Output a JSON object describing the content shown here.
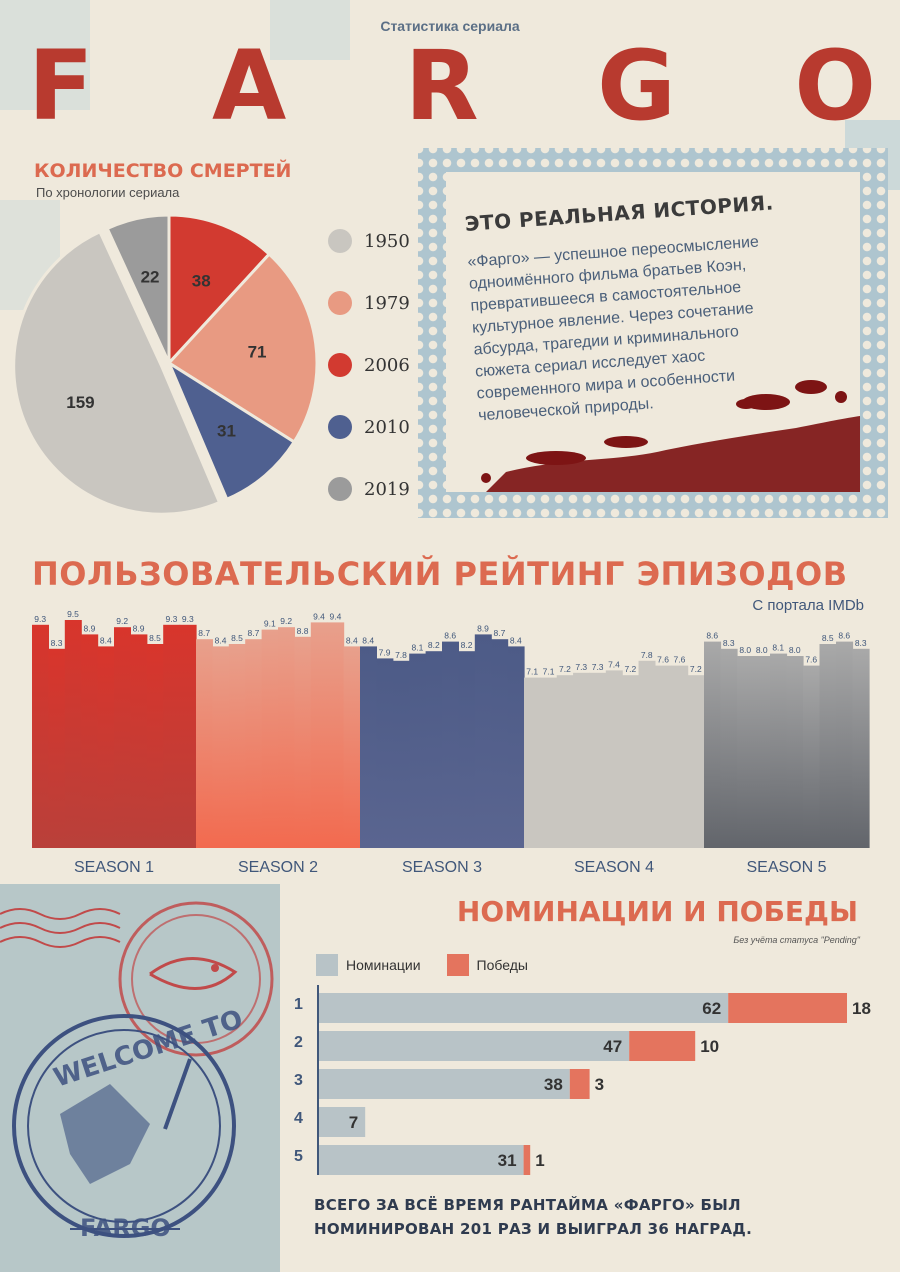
{
  "header": {
    "subtitle": "Статистика сериала",
    "title_letters": [
      "F",
      "A",
      "R",
      "G",
      "O"
    ]
  },
  "deaths": {
    "title": "КОЛИЧЕСТВО СМЕРТЕЙ",
    "subtitle": "По хронологии сериала"
  },
  "story": {
    "heading": "ЭТО РЕАЛЬНАЯ ИСТОРИЯ.",
    "lines": [
      "«Фарго» — успешное переосмысление",
      "одноимённого фильма братьев Коэн,",
      "превратившееся в самостоятельное",
      "культурное явление. Через сочетание",
      "абсурда, трагедии и криминального",
      "сюжета сериал исследует хаос",
      "современного мира и особенности",
      "человеческой природы."
    ]
  },
  "ratings": {
    "title": "ПОЛЬЗОВАТЕЛЬСКИЙ РЕЙТИНГ ЭПИЗОДОВ",
    "source": "С портала IMDb"
  },
  "nominations": {
    "title": "НОМИНАЦИИ И ПОБЕДЫ",
    "note": "Без учёта статуса \"Pending\"",
    "legend_nominations": "Номинации",
    "legend_wins": "Победы"
  },
  "footer": {
    "line1": "ВСЕГО ЗА ВСЁ ВРЕМЯ РАНТАЙМА «ФАРГО» БЫЛ",
    "line2": "НОМИНИРОВАН  201  РАЗ И ВЫИГРАЛ 36 НАГРАД."
  },
  "stamp": {
    "text_top": "WELCOME TO",
    "text_bottom": "FARGO"
  },
  "colors": {
    "red": "#d23a30",
    "salmon": "#e89a82",
    "navy": "#4f6090",
    "light_grey": "#c9c6c0",
    "dark_grey": "#9b9b9b",
    "accent": "#dc6a50"
  },
  "chart_data": [
    {
      "type": "pie",
      "title": "КОЛИЧЕСТВО СМЕРТЕЙ",
      "subtitle": "По хронологии сериала",
      "categories": [
        "1950",
        "1979",
        "2006",
        "2010",
        "2019"
      ],
      "slices": [
        {
          "label": "2006",
          "value": 38,
          "color": "#d23a30"
        },
        {
          "label": "1979",
          "value": 71,
          "color": "#e89a82"
        },
        {
          "label": "2010",
          "value": 31,
          "color": "#4f6090"
        },
        {
          "label": "1950",
          "value": 159,
          "color": "#c9c6c0"
        },
        {
          "label": "2019",
          "value": 22,
          "color": "#9b9b9b"
        }
      ],
      "legend_position": "right"
    },
    {
      "type": "bar",
      "title": "ПОЛЬЗОВАТЕЛЬСКИЙ РЕЙТИНГ ЭПИЗОДОВ",
      "subtitle": "С портала IMDb",
      "ylim": [
        0,
        9.5
      ],
      "seasons": [
        {
          "name": "SEASON 1",
          "color_top": "#d8352c",
          "color_bottom": "#b9403a",
          "values": [
            9.3,
            8.3,
            9.5,
            8.9,
            8.4,
            9.2,
            8.9,
            8.5,
            9.3,
            9.3
          ]
        },
        {
          "name": "SEASON 2",
          "color_top": "#e8a08c",
          "color_bottom": "#f26a4f",
          "values": [
            8.7,
            8.4,
            8.5,
            8.7,
            9.1,
            9.2,
            8.8,
            9.4,
            9.4,
            8.4
          ]
        },
        {
          "name": "SEASON 3",
          "color_top": "#4d5b87",
          "color_bottom": "#5a6590",
          "values": [
            8.4,
            7.9,
            7.8,
            8.1,
            8.2,
            8.6,
            8.2,
            8.9,
            8.7,
            8.4
          ]
        },
        {
          "name": "SEASON 4",
          "color_top": "#c9c6c0",
          "color_bottom": "#c9c6c0",
          "values": [
            7.1,
            7.1,
            7.2,
            7.3,
            7.3,
            7.4,
            7.2,
            7.8,
            7.6,
            7.6,
            7.2
          ]
        },
        {
          "name": "SEASON 5",
          "color_top": "#a9a9a9",
          "color_bottom": "#62656b",
          "values": [
            8.6,
            8.3,
            8.0,
            8.0,
            8.1,
            8.0,
            7.6,
            8.5,
            8.6,
            8.3
          ]
        }
      ]
    },
    {
      "type": "bar",
      "orientation": "horizontal",
      "stacked": true,
      "title": "НОМИНАЦИИ И ПОБЕДЫ",
      "categories": [
        "1",
        "2",
        "3",
        "4",
        "5"
      ],
      "series": [
        {
          "name": "Номинации",
          "values": [
            62,
            47,
            38,
            7,
            31
          ],
          "color": "#b8c3c7"
        },
        {
          "name": "Победы",
          "values": [
            18,
            10,
            3,
            0,
            1
          ],
          "color": "#e4745e"
        }
      ],
      "legend_position": "top-left"
    }
  ]
}
